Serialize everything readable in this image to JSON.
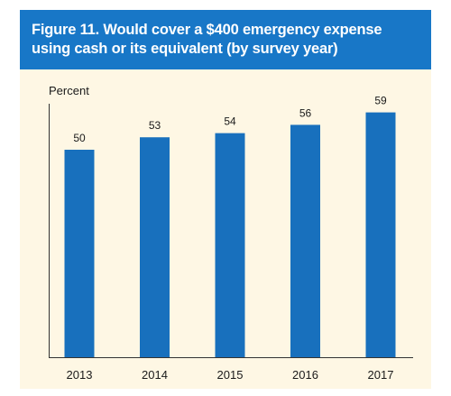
{
  "figure": {
    "title": "Figure 11. Would cover a $400 emergency expense using cash or its equivalent (by survey year)"
  },
  "colors": {
    "title_bar": "#1877c7",
    "title_text": "#ffffff",
    "panel_background": "#fef7e4",
    "bar": "#1870bd",
    "axis": "#333333"
  },
  "chart_data": {
    "type": "bar",
    "title": "Figure 11. Would cover a $400 emergency expense using cash or its equivalent (by survey year)",
    "xlabel": "",
    "ylabel": "Percent",
    "categories": [
      "2013",
      "2014",
      "2015",
      "2016",
      "2017"
    ],
    "values": [
      50,
      53,
      54,
      56,
      59
    ],
    "data_labels": [
      "50",
      "53",
      "54",
      "56",
      "59"
    ],
    "ylim": [
      0,
      65
    ],
    "grid": false,
    "legend": "none"
  }
}
